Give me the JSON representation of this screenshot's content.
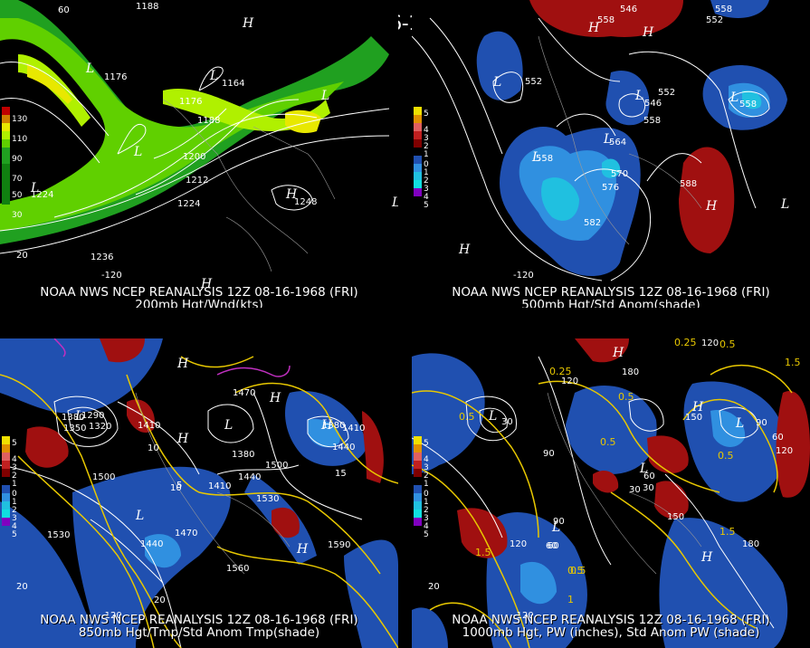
{
  "title": "12Z 08-16-1968 (FRI)",
  "panels": [
    {
      "id": "p1",
      "caption_line1": "NOAA NWS NCEP REANALYSIS 12Z 08-16-1968 (FRI)",
      "caption_line2": "200mb Hgt/Wnd(kts)",
      "legend": [
        "130",
        "110",
        "90",
        "70",
        "50",
        "30"
      ],
      "legend_colors": [
        "#c00000",
        "#d08000",
        "#e8e800",
        "#b0f000",
        "#60d000",
        "#20a020",
        "#108010"
      ],
      "contour_labels": [
        "1188",
        "1176",
        "1164",
        "1176",
        "1188",
        "1200",
        "1212",
        "1224",
        "1224",
        "1236",
        "1248",
        "1176"
      ],
      "lon_labels": [
        "-120",
        "20",
        "60"
      ]
    },
    {
      "id": "p2",
      "caption_line1": "NOAA NWS NCEP REANALYSIS 12Z 08-16-1968 (FRI)",
      "caption_line2": "500mb Hgt/Std Anom(shade)",
      "legend": [
        "5",
        "4",
        "3",
        "2",
        "1",
        "0",
        "1",
        "2",
        "3",
        "4",
        "5"
      ],
      "legend_colors": [
        "#f0e000",
        "#e09000",
        "#e06060",
        "#c02020",
        "#800000",
        "#000000",
        "#2050b0",
        "#3090e0",
        "#20c0e0",
        "#10e0e0",
        "#8000c0"
      ],
      "contour_labels": [
        "552",
        "558",
        "546",
        "552",
        "558",
        "552",
        "546",
        "558",
        "564",
        "558",
        "570",
        "576",
        "582",
        "588",
        "558"
      ],
      "lon_labels": [
        "-120"
      ]
    },
    {
      "id": "p3",
      "caption_line1": "NOAA NWS NCEP REANALYSIS 12Z 08-16-1968 (FRI)",
      "caption_line2": "850mb Hgt/Tmp/Std Anom Tmp(shade)",
      "legend": [
        "5",
        "4",
        "3",
        "2",
        "1",
        "0",
        "1",
        "2",
        "3",
        "4",
        "5"
      ],
      "contour_labels": [
        "1380",
        "1290",
        "1320",
        "1350",
        "1410",
        "1470",
        "1380",
        "1500",
        "1440",
        "1410",
        "1530",
        "1500",
        "1530",
        "1440",
        "1470",
        "1560",
        "1590",
        "1380",
        "1410",
        "1440",
        "10",
        "10",
        "15",
        "20",
        "5"
      ],
      "lon_labels": [
        "-120",
        "20"
      ]
    },
    {
      "id": "p4",
      "caption_line1": "NOAA NWS NCEP REANALYSIS 12Z 08-16-1968 (FRI)",
      "caption_line2": "1000mb Hgt, PW (inches), Std Anom PW (shade)",
      "legend": [
        "5",
        "4",
        "3",
        "2",
        "1",
        "0",
        "1",
        "2",
        "3",
        "4",
        "5"
      ],
      "contour_labels": [
        "0.25",
        "120",
        "0.5",
        "1.5",
        "0.25",
        "120",
        "180",
        "0.5",
        "150",
        "30",
        "90",
        "60",
        "120",
        "0.5",
        "90",
        "0.5",
        "0.5",
        "30",
        "60",
        "150",
        "90",
        "120",
        "60",
        "1.5",
        "0.5",
        "1.5",
        "180",
        "1",
        "30",
        "0.5",
        "60"
      ],
      "lon_labels": [
        "-120",
        "20"
      ]
    }
  ]
}
